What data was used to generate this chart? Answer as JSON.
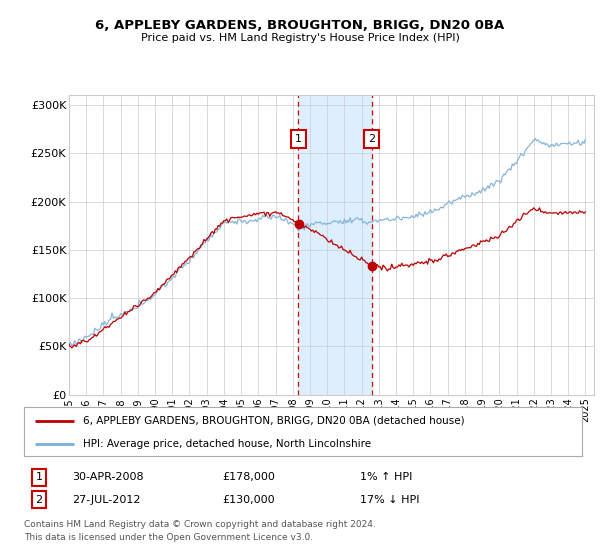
{
  "title": "6, APPLEBY GARDENS, BROUGHTON, BRIGG, DN20 0BA",
  "subtitle": "Price paid vs. HM Land Registry's House Price Index (HPI)",
  "ylabel_ticks": [
    "£0",
    "£50K",
    "£100K",
    "£150K",
    "£200K",
    "£250K",
    "£300K"
  ],
  "ytick_vals": [
    0,
    50000,
    100000,
    150000,
    200000,
    250000,
    300000
  ],
  "ylim": [
    0,
    310000
  ],
  "xlim_start": 1995.0,
  "xlim_end": 2025.5,
  "transaction1_date": 2008.33,
  "transaction1_price": 178000,
  "transaction1_label": "1",
  "transaction2_date": 2012.58,
  "transaction2_price": 130000,
  "transaction2_label": "2",
  "shade_start": 2008.33,
  "shade_end": 2012.58,
  "line_color_red": "#bb0000",
  "line_color_blue": "#7aaed6",
  "marker_box_color": "#cc0000",
  "shade_color": "#ddeeff",
  "dashed_color": "#cc0000",
  "legend_line1": "6, APPLEBY GARDENS, BROUGHTON, BRIGG, DN20 0BA (detached house)",
  "legend_line2": "HPI: Average price, detached house, North Lincolnshire",
  "footer": "Contains HM Land Registry data © Crown copyright and database right 2024.\nThis data is licensed under the Open Government Licence v3.0.",
  "background_color": "#ffffff",
  "grid_color": "#cccccc",
  "xtick_years": [
    1995,
    1996,
    1997,
    1998,
    1999,
    2000,
    2001,
    2002,
    2003,
    2004,
    2005,
    2006,
    2007,
    2008,
    2009,
    2010,
    2011,
    2012,
    2013,
    2014,
    2015,
    2016,
    2017,
    2018,
    2019,
    2020,
    2021,
    2022,
    2023,
    2024,
    2025
  ]
}
